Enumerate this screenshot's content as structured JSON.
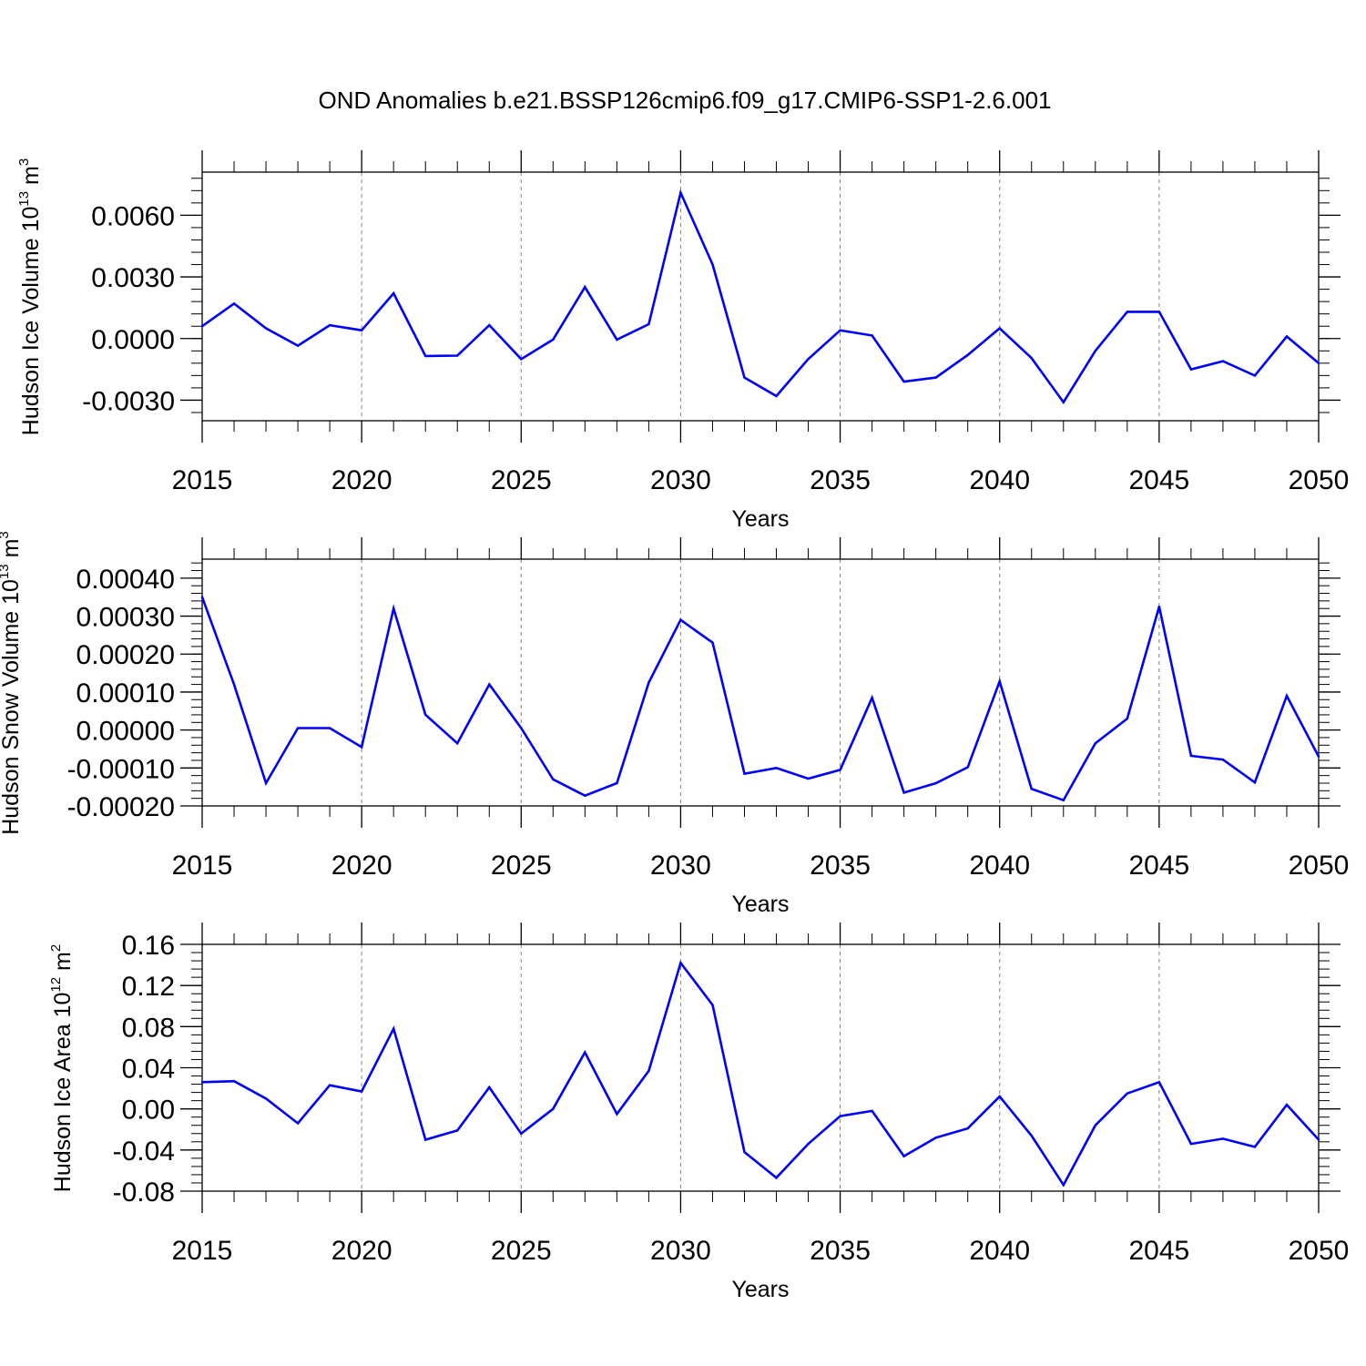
{
  "title": "OND Anomalies b.e21.BSSP126cmip6.f09_g17.CMIP6-SSP1-2.6.001",
  "colors": {
    "line": "#0000ff",
    "axis": "#000000",
    "grid": "#808080"
  },
  "chart_data": [
    {
      "id": "ice-volume",
      "type": "line",
      "ylabel_prefix": "Hudson Ice Volume 10",
      "ylabel_exp": "13",
      "ylabel_unit": " m",
      "ylabel_unit_exp": "3",
      "xlabel": "Years",
      "xlim": [
        2015,
        2050
      ],
      "ylim": [
        -0.004,
        0.0081
      ],
      "yticks": [
        -0.003,
        0.0,
        0.003,
        0.006
      ],
      "ytick_labels": [
        "-0.0030",
        "0.0000",
        "0.0030",
        "0.0060"
      ],
      "yminor_step": 0.0006,
      "xticks": [
        2015,
        2020,
        2025,
        2030,
        2035,
        2040,
        2045,
        2050
      ],
      "xtick_labels": [
        "2015",
        "2020",
        "2025",
        "2030",
        "2035",
        "2040",
        "2045",
        "2050"
      ],
      "grid_x": [
        2020,
        2025,
        2030,
        2035,
        2040,
        2045
      ],
      "x": [
        2015,
        2016,
        2017,
        2018,
        2019,
        2020,
        2021,
        2022,
        2023,
        2024,
        2025,
        2026,
        2027,
        2028,
        2029,
        2030,
        2031,
        2032,
        2033,
        2034,
        2035,
        2036,
        2037,
        2038,
        2039,
        2040,
        2041,
        2042,
        2043,
        2044,
        2045,
        2046,
        2047,
        2048,
        2049,
        2050
      ],
      "y": [
        0.0006,
        0.0017,
        0.0005,
        -0.00035,
        0.00065,
        0.0004,
        0.0022,
        -0.00085,
        -0.00083,
        0.00065,
        -0.001,
        -5e-05,
        0.0025,
        -5e-05,
        0.0007,
        0.0071,
        0.0036,
        -0.0019,
        -0.0028,
        -0.001,
        0.0004,
        0.00015,
        -0.0021,
        -0.0019,
        -0.0008,
        0.0005,
        -0.00095,
        -0.0031,
        -0.0006,
        0.0013,
        0.0013,
        -0.0015,
        -0.0011,
        -0.0018,
        0.0001,
        -0.0012
      ]
    },
    {
      "id": "snow-volume",
      "type": "line",
      "ylabel_prefix": "Hudson Snow Volume 10",
      "ylabel_exp": "13",
      "ylabel_unit": " m",
      "ylabel_unit_exp": "3",
      "xlabel": "Years",
      "xlim": [
        2015,
        2050
      ],
      "ylim": [
        -0.0002,
        0.00045
      ],
      "yticks": [
        -0.0002,
        -0.0001,
        0.0,
        0.0001,
        0.0002,
        0.0003,
        0.0004
      ],
      "ytick_labels": [
        "-0.00020",
        "-0.00010",
        "0.00000",
        "0.00010",
        "0.00020",
        "0.00030",
        "0.00040"
      ],
      "yminor_step": 2e-05,
      "xticks": [
        2015,
        2020,
        2025,
        2030,
        2035,
        2040,
        2045,
        2050
      ],
      "xtick_labels": [
        "2015",
        "2020",
        "2025",
        "2030",
        "2035",
        "2040",
        "2045",
        "2050"
      ],
      "grid_x": [
        2020,
        2025,
        2030,
        2035,
        2040,
        2045
      ],
      "x": [
        2015,
        2016,
        2017,
        2018,
        2019,
        2020,
        2021,
        2022,
        2023,
        2024,
        2025,
        2026,
        2027,
        2028,
        2029,
        2030,
        2031,
        2032,
        2033,
        2034,
        2035,
        2036,
        2037,
        2038,
        2039,
        2040,
        2041,
        2042,
        2043,
        2044,
        2045,
        2046,
        2047,
        2048,
        2049,
        2050
      ],
      "y": [
        0.00035,
        0.00012,
        -0.00014,
        5e-06,
        5e-06,
        -4.5e-05,
        0.00032,
        4e-05,
        -3.5e-05,
        0.00012,
        5e-06,
        -0.00013,
        -0.000173,
        -0.00014,
        0.000125,
        0.00029,
        0.00023,
        -0.000115,
        -0.0001,
        -0.000128,
        -0.000105,
        8.5e-05,
        -0.000165,
        -0.00014,
        -9.8e-05,
        0.000128,
        -0.000155,
        -0.000185,
        -3.5e-05,
        3e-05,
        0.000325,
        -6.8e-05,
        -7.8e-05,
        -0.000138,
        9e-05,
        -7e-05
      ]
    },
    {
      "id": "ice-area",
      "type": "line",
      "ylabel_prefix": "Hudson Ice Area 10",
      "ylabel_exp": "12",
      "ylabel_unit": " m",
      "ylabel_unit_exp": "2",
      "xlabel": "Years",
      "xlim": [
        2015,
        2050
      ],
      "ylim": [
        -0.08,
        0.16
      ],
      "yticks": [
        -0.08,
        -0.04,
        0.0,
        0.04,
        0.08,
        0.12,
        0.16
      ],
      "ytick_labels": [
        "-0.08",
        "-0.04",
        "0.00",
        "0.04",
        "0.08",
        "0.12",
        "0.16"
      ],
      "yminor_step": 0.008,
      "xticks": [
        2015,
        2020,
        2025,
        2030,
        2035,
        2040,
        2045,
        2050
      ],
      "xtick_labels": [
        "2015",
        "2020",
        "2025",
        "2030",
        "2035",
        "2040",
        "2045",
        "2050"
      ],
      "grid_x": [
        2020,
        2025,
        2030,
        2035,
        2040,
        2045
      ],
      "x": [
        2015,
        2016,
        2017,
        2018,
        2019,
        2020,
        2021,
        2022,
        2023,
        2024,
        2025,
        2026,
        2027,
        2028,
        2029,
        2030,
        2031,
        2032,
        2033,
        2034,
        2035,
        2036,
        2037,
        2038,
        2039,
        2040,
        2041,
        2042,
        2043,
        2044,
        2045,
        2046,
        2047,
        2048,
        2049,
        2050
      ],
      "y": [
        0.026,
        0.027,
        0.01,
        -0.014,
        0.023,
        0.017,
        0.078,
        -0.03,
        -0.021,
        0.021,
        -0.024,
        0.0,
        0.055,
        -0.005,
        0.037,
        0.142,
        0.101,
        -0.042,
        -0.067,
        -0.034,
        -0.007,
        -0.002,
        -0.046,
        -0.028,
        -0.019,
        0.012,
        -0.026,
        -0.074,
        -0.016,
        0.015,
        0.026,
        -0.034,
        -0.029,
        -0.037,
        0.004,
        -0.03
      ]
    }
  ]
}
